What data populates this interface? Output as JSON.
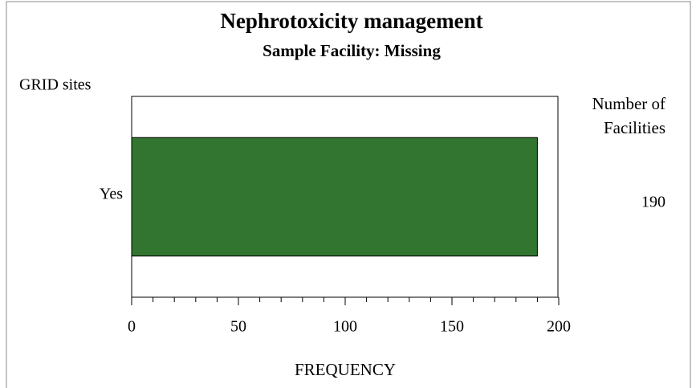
{
  "chart_data": {
    "type": "hbar",
    "title": "Nephrotoxicity management",
    "subtitle": "Sample Facility: Missing",
    "y_label": "GRID sites",
    "x_label": "FREQUENCY",
    "value_column_header": "Number of Facilities",
    "categories": [
      "Yes"
    ],
    "values": [
      190
    ],
    "color": "#317531",
    "xlim": [
      0,
      200
    ],
    "xticks": [
      0,
      50,
      100,
      150,
      200
    ],
    "xminorticks": [
      10,
      20,
      30,
      40,
      60,
      70,
      80,
      90,
      110,
      120,
      130,
      140,
      160,
      170,
      180,
      190
    ]
  }
}
